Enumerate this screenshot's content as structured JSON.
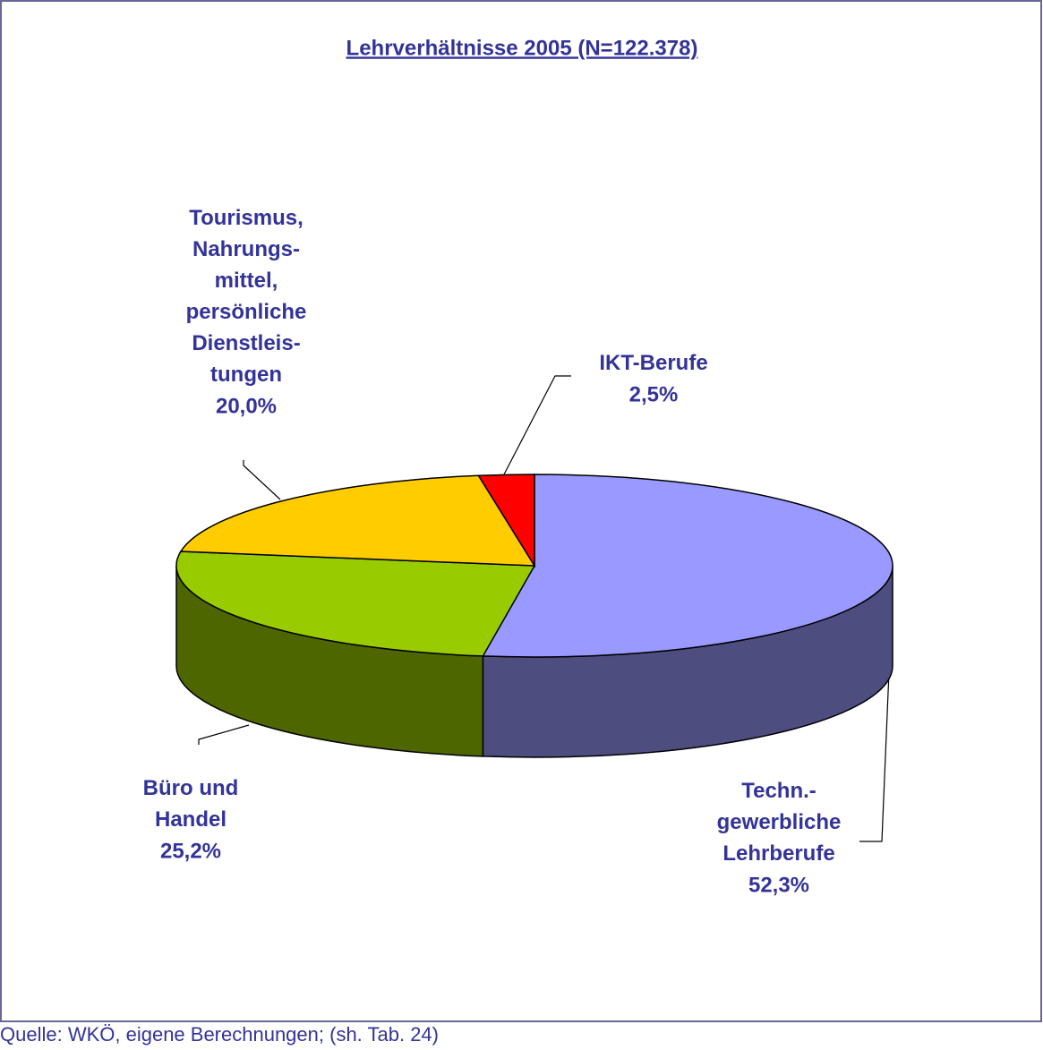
{
  "chart_data": {
    "type": "pie3d",
    "title": "Lehrverhältnisse 2005 (N=122.378)",
    "categories": [
      "Techn.-\ngewerbliche\nLehrberufe",
      "Büro und\nHandel",
      "Tourismus,\nNahrungs-\nmittel,\npersönliche\nDienstleis-\ntungen",
      "IKT-Berufe"
    ],
    "values": [
      52.3,
      25.2,
      20.0,
      2.5
    ],
    "value_labels": [
      "52,3%",
      "25,2%",
      "20,0%",
      "2,5%"
    ],
    "colors": [
      "#9999ff",
      "#99cc00",
      "#ffcc00",
      "#ff0000"
    ],
    "side_colors": [
      "#4d4d80",
      "#4d6600",
      "#806600",
      "#800000"
    ],
    "source": "Quelle: WKÖ, eigene Berechnungen; (sh. Tab. 24)"
  }
}
